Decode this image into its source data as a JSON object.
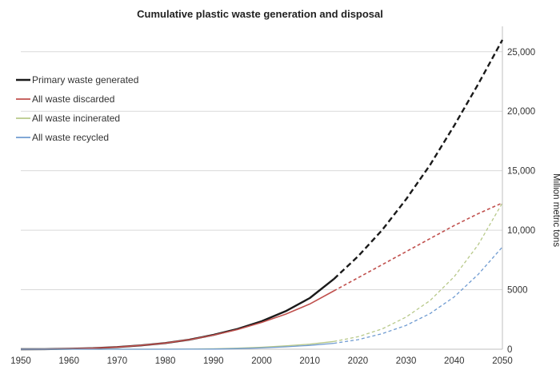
{
  "chart_data": {
    "type": "line",
    "title": "Cumulative plastic waste generation and disposal",
    "xlabel": "",
    "ylabel": "Million metric tons",
    "xlim": [
      1950,
      2050
    ],
    "ylim": [
      0,
      27000
    ],
    "x_ticks": [
      "1950",
      "1960",
      "1970",
      "1980",
      "1990",
      "2000",
      "2010",
      "2020",
      "2030",
      "2040",
      "2050"
    ],
    "y_ticks": [
      "0",
      "5000",
      "10,000",
      "15,000",
      "20,000",
      "25,000"
    ],
    "y_tick_values": [
      0,
      5000,
      10000,
      15000,
      20000,
      25000
    ],
    "y_axis_side": "right",
    "grid": "horizontal",
    "legend_position": "top-left",
    "observed_until": 2015,
    "x": [
      1950,
      1955,
      1960,
      1965,
      1970,
      1975,
      1980,
      1985,
      1990,
      1995,
      2000,
      2005,
      2010,
      2015,
      2020,
      2025,
      2030,
      2035,
      2040,
      2045,
      2050
    ],
    "series": [
      {
        "name": "Primary waste generated",
        "color": "#1a1a1a",
        "values": [
          0,
          10,
          40,
          90,
          180,
          320,
          520,
          800,
          1200,
          1700,
          2350,
          3200,
          4300,
          5900,
          7800,
          10000,
          12600,
          15500,
          18800,
          22300,
          26000
        ]
      },
      {
        "name": "All waste discarded",
        "color": "#c0504d",
        "values": [
          0,
          10,
          40,
          90,
          180,
          320,
          520,
          800,
          1180,
          1650,
          2250,
          2950,
          3800,
          4900,
          6000,
          7100,
          8200,
          9300,
          10400,
          11400,
          12300
        ]
      },
      {
        "name": "All waste incinerated",
        "color": "#b8c98a",
        "values": [
          0,
          0,
          0,
          0,
          0,
          0,
          5,
          15,
          40,
          90,
          170,
          280,
          420,
          650,
          1050,
          1700,
          2700,
          4100,
          6100,
          8800,
          12300
        ]
      },
      {
        "name": "All waste recycled",
        "color": "#6f9bd1",
        "values": [
          0,
          0,
          0,
          0,
          0,
          0,
          0,
          5,
          15,
          50,
          110,
          200,
          320,
          500,
          800,
          1300,
          2000,
          3000,
          4400,
          6300,
          8600
        ]
      }
    ]
  }
}
